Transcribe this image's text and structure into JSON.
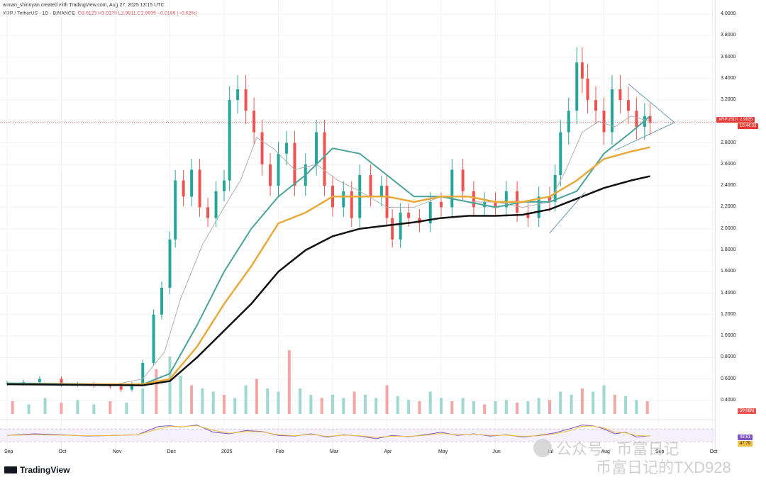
{
  "header": {
    "attribution": "arman_shirinyan created with TradingView.com, Aug 27, 2025 13:15 UTC",
    "symbol": "XRP / TetherUS · 1D · BINANCE",
    "open": "O3.0123",
    "high": "H3.0279",
    "low": "L2.9811",
    "close": "C2.9935",
    "change": "−0.0188 (−0.62%)"
  },
  "badges": {
    "price_symbol": "XRPUSDT",
    "price_value": "2.9935",
    "countdown": "10:44:33",
    "volume": "50.08M",
    "rsi_value": "48.61",
    "rsi_ma": "47.79"
  },
  "footer": {
    "brand": "TradingView"
  },
  "watermark": {
    "line1": "公众号 · 币富日记",
    "line2": "币富日记的TXD928"
  },
  "chart_data": {
    "type": "candlestick",
    "title": "XRP / TetherUS · 1D · BINANCE",
    "ylim": [
      0.3,
      4.0
    ],
    "y_ticks": [
      "4.0000",
      "3.8000",
      "3.6000",
      "3.4000",
      "3.2000",
      "3.0000",
      "2.8000",
      "2.6000",
      "2.4000",
      "2.2000",
      "2.0000",
      "1.8000",
      "1.6000",
      "1.4000",
      "1.2000",
      "1.0000",
      "0.8000",
      "0.6000",
      "0.4000"
    ],
    "x_ticks": [
      "Sep",
      "Oct",
      "Nov",
      "Dec",
      "2025",
      "Feb",
      "Mar",
      "Apr",
      "May",
      "Jun",
      "Jul",
      "Aug",
      "Sep",
      "Oct"
    ],
    "x_tick_months": [
      0,
      1,
      2,
      3,
      4,
      5,
      6,
      7,
      8,
      9,
      10,
      11,
      12,
      13
    ],
    "price_months": [
      0,
      0.3,
      0.6,
      1,
      1.3,
      1.6,
      1.9,
      2.1,
      2.3,
      2.5,
      2.7,
      2.85,
      3,
      3.1,
      3.25,
      3.4,
      3.55,
      3.7,
      3.85,
      4,
      4.1,
      4.25,
      4.4,
      4.55,
      4.7,
      4.85,
      5,
      5.15,
      5.3,
      5.5,
      5.7,
      5.85,
      6,
      6.2,
      6.35,
      6.5,
      6.7,
      6.9,
      7,
      7.1,
      7.25,
      7.4,
      7.6,
      7.8,
      8,
      8.2,
      8.4,
      8.6,
      8.8,
      9,
      9.2,
      9.4,
      9.6,
      9.8,
      10,
      10.1,
      10.2,
      10.35,
      10.5,
      10.6,
      10.7,
      10.85,
      11,
      11.15,
      11.3,
      11.45,
      11.6,
      11.75,
      11.85
    ],
    "price_close": [
      0.56,
      0.57,
      0.6,
      0.55,
      0.55,
      0.54,
      0.53,
      0.5,
      0.55,
      0.75,
      1.2,
      1.45,
      1.9,
      2.45,
      2.3,
      2.55,
      2.2,
      2.1,
      2.35,
      2.45,
      3.2,
      3.3,
      3.1,
      2.9,
      2.6,
      2.4,
      2.7,
      2.8,
      2.4,
      2.6,
      2.9,
      2.4,
      2.2,
      2.35,
      2.1,
      2.5,
      2.3,
      2.4,
      2.1,
      1.9,
      2.15,
      2.1,
      2.05,
      2.25,
      2.2,
      2.55,
      2.35,
      2.2,
      2.25,
      2.2,
      2.35,
      2.15,
      2.1,
      2.3,
      2.25,
      2.5,
      2.9,
      3.1,
      3.55,
      3.4,
      3.2,
      3.1,
      2.9,
      3.3,
      3.2,
      3.1,
      2.95,
      3.05,
      2.99
    ],
    "ma_20_months": [
      0,
      2,
      2.5,
      2.9,
      3.2,
      3.6,
      4,
      4.3,
      4.6,
      4.9,
      5.3,
      5.7,
      6.1,
      6.5,
      7,
      7.5,
      8,
      8.5,
      9,
      9.5,
      10,
      10.3,
      10.6,
      10.9,
      11.2,
      11.5,
      11.85
    ],
    "ma_20_values": [
      0.56,
      0.55,
      0.6,
      0.85,
      1.35,
      1.85,
      2.2,
      2.45,
      2.85,
      2.75,
      2.55,
      2.6,
      2.45,
      2.35,
      2.2,
      2.2,
      2.3,
      2.25,
      2.25,
      2.2,
      2.25,
      2.55,
      2.9,
      3.0,
      2.95,
      3.05,
      3.0
    ],
    "ma_50_months": [
      0,
      2.5,
      3,
      3.5,
      4,
      4.5,
      5,
      5.5,
      6,
      6.5,
      7,
      7.5,
      8,
      8.5,
      9,
      9.5,
      10,
      10.5,
      11,
      11.5,
      11.85
    ],
    "ma_50_values": [
      0.56,
      0.55,
      0.65,
      1.1,
      1.6,
      2.0,
      2.3,
      2.5,
      2.75,
      2.7,
      2.5,
      2.3,
      2.3,
      2.25,
      2.2,
      2.25,
      2.25,
      2.35,
      2.7,
      2.9,
      3.05
    ],
    "ma_100_months": [
      0,
      2.5,
      3,
      3.5,
      4,
      4.5,
      5,
      5.5,
      6,
      6.5,
      7,
      7.5,
      8,
      8.5,
      9,
      9.5,
      10,
      10.5,
      11,
      11.5,
      11.85
    ],
    "ma_100_values": [
      0.55,
      0.55,
      0.6,
      0.9,
      1.3,
      1.65,
      2.05,
      2.15,
      2.3,
      2.3,
      2.3,
      2.25,
      2.3,
      2.3,
      2.25,
      2.25,
      2.3,
      2.45,
      2.65,
      2.72,
      2.76
    ],
    "ma_200_months": [
      0,
      2.5,
      3,
      3.5,
      4,
      4.5,
      5,
      5.5,
      6,
      6.5,
      7,
      7.5,
      8,
      8.5,
      9,
      9.5,
      10,
      10.5,
      11,
      11.5,
      11.85
    ],
    "ma_200_values": [
      0.55,
      0.54,
      0.58,
      0.8,
      1.05,
      1.3,
      1.6,
      1.8,
      1.93,
      2.0,
      2.03,
      2.06,
      2.1,
      2.12,
      2.12,
      2.13,
      2.18,
      2.28,
      2.38,
      2.45,
      2.49
    ],
    "triangle": {
      "apex_month": 12.3,
      "apex_price": 2.99,
      "top_start": [
        11.45,
        3.35
      ],
      "bottom_start": [
        11.2,
        2.73
      ]
    },
    "wedge": {
      "start": [
        10.0,
        1.96
      ],
      "end": [
        10.65,
        2.34
      ]
    },
    "current_price": 2.9935,
    "volume_months": [
      0.1,
      0.4,
      0.7,
      1,
      1.3,
      1.6,
      1.9,
      2.2,
      2.5,
      2.75,
      3,
      3.2,
      3.4,
      3.6,
      3.8,
      4,
      4.2,
      4.4,
      4.6,
      4.8,
      5,
      5.2,
      5.4,
      5.6,
      5.8,
      6,
      6.2,
      6.4,
      6.6,
      6.8,
      7,
      7.2,
      7.4,
      7.6,
      7.8,
      8,
      8.2,
      8.4,
      8.6,
      8.8,
      9,
      9.2,
      9.4,
      9.6,
      9.8,
      10,
      10.2,
      10.4,
      10.6,
      10.8,
      11,
      11.2,
      11.4,
      11.6,
      11.8
    ],
    "volume_values": [
      20,
      15,
      25,
      18,
      22,
      15,
      20,
      18,
      40,
      70,
      90,
      60,
      45,
      40,
      35,
      30,
      25,
      45,
      55,
      40,
      35,
      100,
      40,
      30,
      25,
      30,
      25,
      35,
      30,
      25,
      45,
      28,
      22,
      20,
      35,
      25,
      20,
      25,
      20,
      15,
      20,
      22,
      18,
      20,
      25,
      22,
      35,
      30,
      40,
      35,
      45,
      30,
      28,
      22,
      20
    ],
    "rsi_ylim": [
      20,
      90
    ],
    "rsi_months": [
      0,
      0.5,
      1,
      1.5,
      2,
      2.4,
      2.8,
      3,
      3.2,
      3.5,
      3.8,
      4.1,
      4.4,
      4.7,
      5,
      5.3,
      5.6,
      5.9,
      6.2,
      6.5,
      6.8,
      7.1,
      7.4,
      7.7,
      8,
      8.3,
      8.6,
      8.9,
      9.2,
      9.5,
      9.8,
      10.1,
      10.4,
      10.6,
      10.8,
      11,
      11.2,
      11.4,
      11.6,
      11.85
    ],
    "rsi_values": [
      50,
      55,
      52,
      48,
      50,
      52,
      78,
      80,
      76,
      82,
      60,
      55,
      65,
      62,
      50,
      48,
      55,
      45,
      52,
      48,
      40,
      50,
      46,
      52,
      60,
      50,
      55,
      48,
      52,
      45,
      50,
      58,
      72,
      82,
      80,
      70,
      55,
      60,
      45,
      48.6
    ],
    "rsi_ma_values": [
      50,
      52,
      51,
      49,
      50,
      52,
      70,
      78,
      77,
      80,
      66,
      57,
      62,
      61,
      52,
      49,
      53,
      47,
      51,
      49,
      44,
      48,
      47,
      50,
      56,
      52,
      54,
      50,
      51,
      47,
      49,
      55,
      66,
      78,
      79,
      73,
      60,
      58,
      50,
      47.8
    ]
  }
}
